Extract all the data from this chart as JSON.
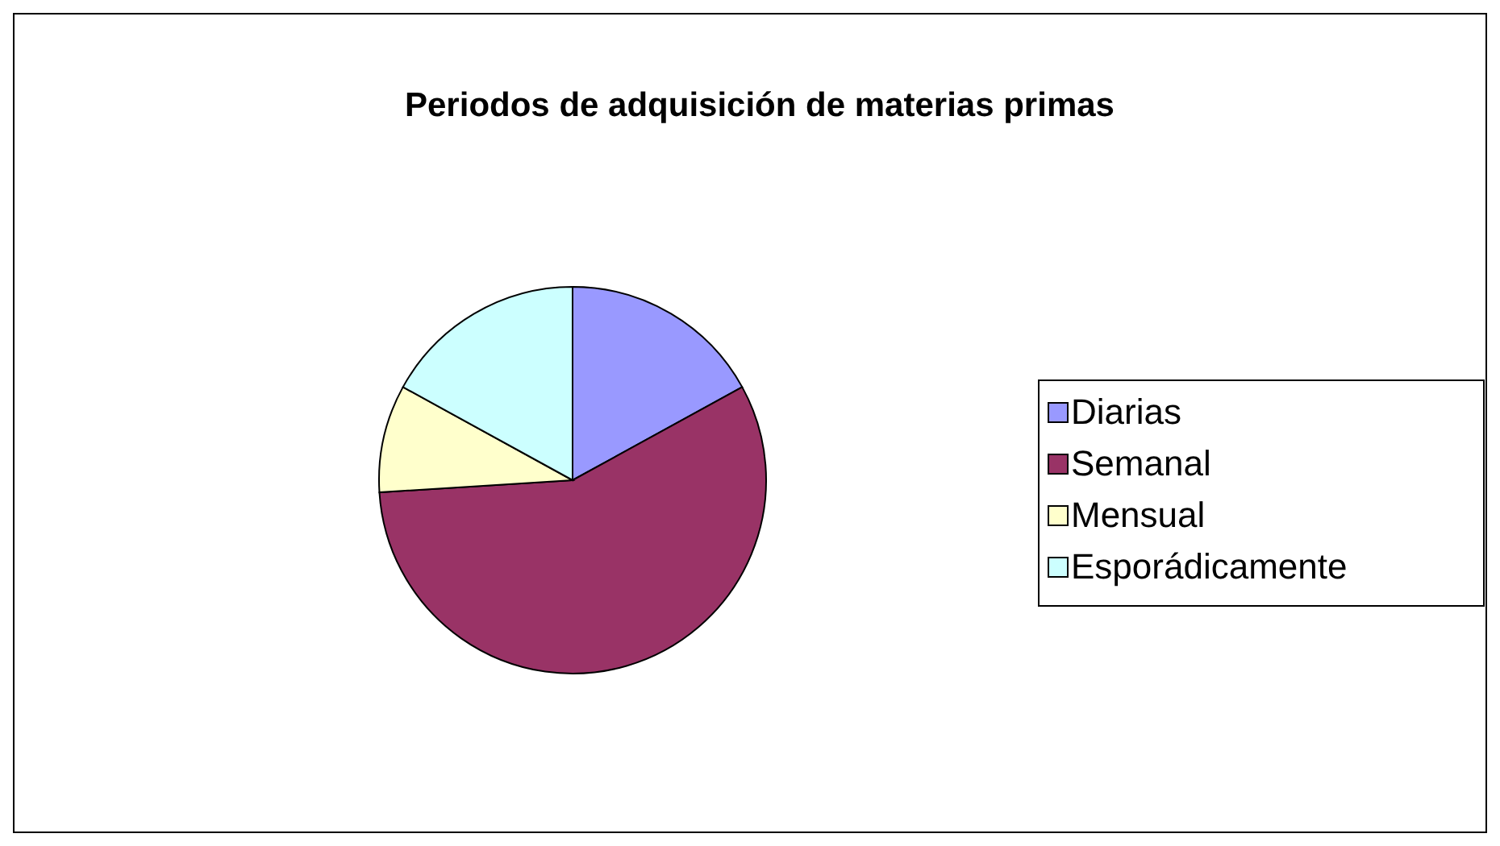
{
  "chart_data": {
    "type": "pie",
    "title": "Periodos de adquisición de materias primas",
    "categories": [
      "Diarias",
      "Semanal",
      "Mensual",
      "Esporádicamente"
    ],
    "values": [
      17,
      57,
      9,
      17
    ],
    "colors": [
      "#9999ff",
      "#993366",
      "#ffffcc",
      "#ccffff"
    ],
    "legend": "right"
  }
}
